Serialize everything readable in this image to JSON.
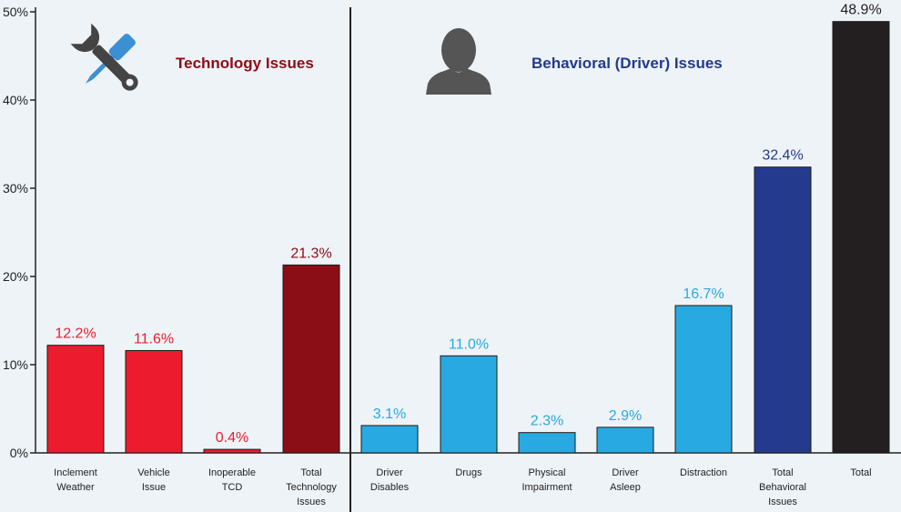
{
  "chart_data": {
    "type": "bar",
    "title": "",
    "xlabel": "",
    "ylabel": "",
    "ylim": [
      0,
      50
    ],
    "yticks": [
      "0%",
      "10%",
      "20%",
      "30%",
      "40%",
      "50%"
    ],
    "ytick_values": [
      0,
      10,
      20,
      30,
      40,
      50
    ],
    "grid": false,
    "sections": [
      {
        "title": "Technology Issues",
        "color": "#8b0d16",
        "icon": "tools-icon"
      },
      {
        "title": "Behavioral (Driver) Issues",
        "color": "#243a8c",
        "icon": "person-icon"
      }
    ],
    "categories": [
      [
        "Inclement",
        "Weather"
      ],
      [
        "Vehicle",
        "Issue"
      ],
      [
        "Inoperable",
        "TCD"
      ],
      [
        "Total",
        "Technology",
        "Issues"
      ],
      [
        "Driver",
        "Disables"
      ],
      [
        "Drugs"
      ],
      [
        "Physical",
        "Impairment"
      ],
      [
        "Driver",
        "Asleep"
      ],
      [
        "Distraction"
      ],
      [
        "Total",
        "Behavioral",
        "Issues"
      ],
      [
        "Total"
      ]
    ],
    "values": [
      12.2,
      11.6,
      0.4,
      21.3,
      3.1,
      11.0,
      2.3,
      2.9,
      16.7,
      32.4,
      48.9
    ],
    "value_labels": [
      "12.2%",
      "11.6%",
      "0.4%",
      "21.3%",
      "3.1%",
      "11.0%",
      "2.3%",
      "2.9%",
      "16.7%",
      "32.4%",
      "48.9%"
    ],
    "bar_colors": [
      "#ec1c2e",
      "#ec1c2e",
      "#ec1c2e",
      "#8b0d16",
      "#29a9e1",
      "#29a9e1",
      "#29a9e1",
      "#29a9e1",
      "#29a9e1",
      "#243a8c",
      "#231f20"
    ],
    "label_colors": [
      "#ec1c2e",
      "#ec1c2e",
      "#ec1c2e",
      "#8b0d16",
      "#29a9e1",
      "#29a9e1",
      "#29a9e1",
      "#29a9e1",
      "#29a9e1",
      "#243a8c",
      "#231f20"
    ]
  }
}
